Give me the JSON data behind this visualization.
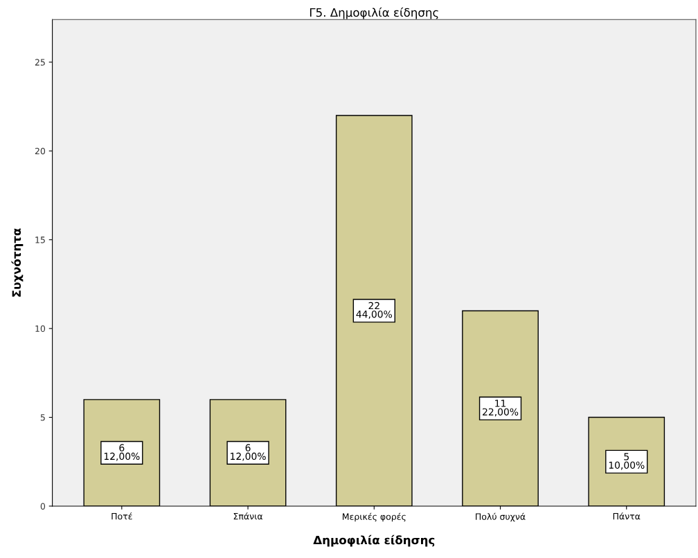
{
  "chart_data": {
    "type": "bar",
    "title": "Γ5. Δημοφιλία είδησης",
    "xlabel": "Δημοφιλία είδησης",
    "ylabel": "Συχνότητα",
    "categories": [
      "Ποτέ",
      "Σπάνια",
      "Μερικές φορές",
      "Πολύ συχνά",
      "Πάντα"
    ],
    "values": [
      6,
      6,
      22,
      11,
      5
    ],
    "value_labels": [
      "6\n12,00%",
      "6\n12,00%",
      "22\n44,00%",
      "11\n22,00%",
      "5\n10,00%"
    ],
    "color": "#d3ce97",
    "ylim": [
      0,
      27.4
    ],
    "yticks": [
      0,
      5,
      10,
      15,
      20,
      25
    ],
    "grid": false,
    "legend": false
  }
}
